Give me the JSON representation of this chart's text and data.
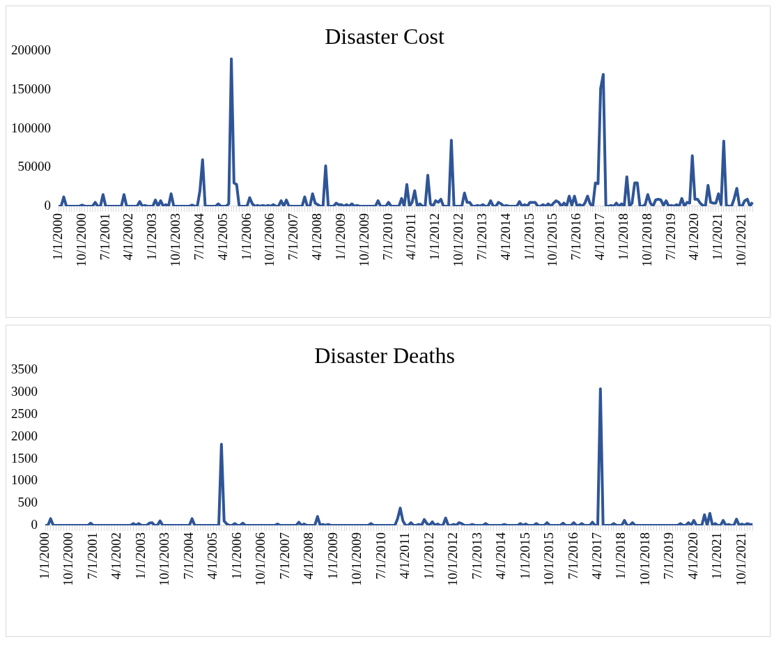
{
  "chart_data": [
    {
      "type": "line",
      "title": "Disaster Cost",
      "color": "#2f5597",
      "ylim": [
        0,
        200000
      ],
      "yticks": [
        0,
        50000,
        100000,
        150000,
        200000
      ],
      "categories": [
        "1/1/2000",
        null,
        null,
        null,
        null,
        null,
        null,
        null,
        null,
        "10/1/2000",
        null,
        null,
        null,
        null,
        null,
        null,
        null,
        null,
        "7/1/2001",
        null,
        null,
        null,
        null,
        null,
        null,
        null,
        null,
        "4/1/2002",
        null,
        null,
        null,
        null,
        null,
        null,
        null,
        null,
        "1/1/2003",
        null,
        null,
        null,
        null,
        null,
        null,
        null,
        null,
        "10/1/2003",
        null,
        null,
        null,
        null,
        null,
        null,
        null,
        null,
        "7/1/2004",
        null,
        null,
        null,
        null,
        null,
        null,
        null,
        null,
        "4/1/2005",
        null,
        null,
        null,
        null,
        null,
        null,
        null,
        null,
        "1/1/2006",
        null,
        null,
        null,
        null,
        null,
        null,
        null,
        null,
        "10/1/2006",
        null,
        null,
        null,
        null,
        null,
        null,
        null,
        null,
        "7/1/2007",
        null,
        null,
        null,
        null,
        null,
        null,
        null,
        null,
        "4/1/2008",
        null,
        null,
        null,
        null,
        null,
        null,
        null,
        null,
        "1/1/2009",
        null,
        null,
        null,
        null,
        null,
        null,
        null,
        null,
        "10/1/2009",
        null,
        null,
        null,
        null,
        null,
        null,
        null,
        null,
        "7/1/2010",
        null,
        null,
        null,
        null,
        null,
        null,
        null,
        null,
        "4/1/2011",
        null,
        null,
        null,
        null,
        null,
        null,
        null,
        null,
        "1/1/2012",
        null,
        null,
        null,
        null,
        null,
        null,
        null,
        null,
        "10/1/2012",
        null,
        null,
        null,
        null,
        null,
        null,
        null,
        null,
        "7/1/2013",
        null,
        null,
        null,
        null,
        null,
        null,
        null,
        null,
        "4/1/2014",
        null,
        null,
        null,
        null,
        null,
        null,
        null,
        null,
        "1/1/2015",
        null,
        null,
        null,
        null,
        null,
        null,
        null,
        null,
        "10/1/2015",
        null,
        null,
        null,
        null,
        null,
        null,
        null,
        null,
        "7/1/2016",
        null,
        null,
        null,
        null,
        null,
        null,
        null,
        null,
        "4/1/2017",
        null,
        null,
        null,
        null,
        null,
        null,
        null,
        null,
        "1/1/2018",
        null,
        null,
        null,
        null,
        null,
        null,
        null,
        null,
        "10/1/2018",
        null,
        null,
        null,
        null,
        null,
        null,
        null,
        null,
        "7/1/2019",
        null,
        null,
        null,
        null,
        null,
        null,
        null,
        null,
        "4/1/2020",
        null,
        null,
        null,
        null,
        null,
        null,
        null,
        null,
        "1/1/2021",
        null,
        null,
        null,
        null,
        null,
        null,
        null,
        null,
        "10/1/2021",
        null,
        null,
        null,
        null
      ],
      "values": [
        0,
        0,
        12000,
        0,
        0,
        0,
        0,
        0,
        0,
        1500,
        0,
        0,
        0,
        0,
        5000,
        0,
        0,
        15000,
        0,
        0,
        0,
        0,
        0,
        0,
        0,
        15000,
        0,
        0,
        0,
        0,
        0,
        6000,
        0,
        1000,
        0,
        0,
        0,
        8000,
        0,
        7000,
        0,
        2000,
        0,
        16000,
        0,
        0,
        0,
        0,
        0,
        0,
        0,
        1500,
        0,
        0,
        20000,
        60000,
        0,
        0,
        0,
        0,
        0,
        3000,
        0,
        0,
        0,
        3000,
        190000,
        30000,
        28000,
        0,
        0,
        0,
        0,
        11000,
        3000,
        0,
        1000,
        0,
        1000,
        0,
        1000,
        0,
        2000,
        0,
        0,
        7000,
        0,
        8000,
        0,
        0,
        0,
        0,
        0,
        0,
        12000,
        0,
        0,
        16000,
        4000,
        2000,
        0,
        0,
        52000,
        0,
        0,
        0,
        4000,
        2000,
        2000,
        0,
        2000,
        0,
        3000,
        0,
        1000,
        0,
        0,
        0,
        0,
        0,
        0,
        0,
        7000,
        0,
        0,
        0,
        5000,
        0,
        0,
        0,
        0,
        10000,
        0,
        28000,
        0,
        5000,
        20000,
        0,
        3000,
        0,
        0,
        40000,
        3000,
        0,
        7000,
        5000,
        9000,
        0,
        0,
        0,
        85000,
        0,
        0,
        0,
        0,
        17000,
        5000,
        5000,
        0,
        0,
        1000,
        0,
        2000,
        0,
        0,
        7000,
        0,
        0,
        5000,
        3000,
        0,
        1000,
        0,
        0,
        0,
        0,
        6000,
        0,
        2000,
        0,
        5000,
        5000,
        5000,
        0,
        0,
        2000,
        0,
        3000,
        0,
        4000,
        7000,
        5000,
        0,
        4000,
        0,
        13000,
        1000,
        13000,
        0,
        2000,
        0,
        4000,
        13000,
        3000,
        0,
        30000,
        29000,
        152000,
        170000,
        0,
        0,
        1000,
        0,
        4000,
        0,
        3000,
        0,
        38000,
        0,
        4000,
        30000,
        30000,
        0,
        0,
        2000,
        15000,
        4000,
        0,
        8000,
        9000,
        8000,
        1000,
        7000,
        0,
        1000,
        0,
        2000,
        0,
        10000,
        0,
        5000,
        4000,
        65000,
        9000,
        9000,
        4000,
        1000,
        0,
        27000,
        5000,
        4000,
        4000,
        16000,
        2000,
        84000,
        1000,
        0,
        0,
        10000,
        23000,
        1000,
        0,
        7000,
        9000,
        0,
        5000
      ]
    },
    {
      "type": "line",
      "title": "Disaster Deaths",
      "color": "#2f5597",
      "ylim": [
        0,
        3500
      ],
      "yticks": [
        0,
        500,
        1000,
        1500,
        2000,
        2500,
        3000,
        3500
      ],
      "categories": [
        "1/1/2000",
        null,
        null,
        null,
        null,
        null,
        null,
        null,
        null,
        "10/1/2000",
        null,
        null,
        null,
        null,
        null,
        null,
        null,
        null,
        "7/1/2001",
        null,
        null,
        null,
        null,
        null,
        null,
        null,
        null,
        "4/1/2002",
        null,
        null,
        null,
        null,
        null,
        null,
        null,
        null,
        "1/1/2003",
        null,
        null,
        null,
        null,
        null,
        null,
        null,
        null,
        "10/1/2003",
        null,
        null,
        null,
        null,
        null,
        null,
        null,
        null,
        "7/1/2004",
        null,
        null,
        null,
        null,
        null,
        null,
        null,
        null,
        "4/1/2005",
        null,
        null,
        null,
        null,
        null,
        null,
        null,
        null,
        "1/1/2006",
        null,
        null,
        null,
        null,
        null,
        null,
        null,
        null,
        "10/1/2006",
        null,
        null,
        null,
        null,
        null,
        null,
        null,
        null,
        "7/1/2007",
        null,
        null,
        null,
        null,
        null,
        null,
        null,
        null,
        "4/1/2008",
        null,
        null,
        null,
        null,
        null,
        null,
        null,
        null,
        "1/1/2009",
        null,
        null,
        null,
        null,
        null,
        null,
        null,
        null,
        "10/1/2009",
        null,
        null,
        null,
        null,
        null,
        null,
        null,
        null,
        "7/1/2010",
        null,
        null,
        null,
        null,
        null,
        null,
        null,
        null,
        "4/1/2011",
        null,
        null,
        null,
        null,
        null,
        null,
        null,
        null,
        "1/1/2012",
        null,
        null,
        null,
        null,
        null,
        null,
        null,
        null,
        "10/1/2012",
        null,
        null,
        null,
        null,
        null,
        null,
        null,
        null,
        "7/1/2013",
        null,
        null,
        null,
        null,
        null,
        null,
        null,
        null,
        "4/1/2014",
        null,
        null,
        null,
        null,
        null,
        null,
        null,
        null,
        "1/1/2015",
        null,
        null,
        null,
        null,
        null,
        null,
        null,
        null,
        "10/1/2015",
        null,
        null,
        null,
        null,
        null,
        null,
        null,
        null,
        "7/1/2016",
        null,
        null,
        null,
        null,
        null,
        null,
        null,
        null,
        "4/1/2017",
        null,
        null,
        null,
        null,
        null,
        null,
        null,
        null,
        "1/1/2018",
        null,
        null,
        null,
        null,
        null,
        null,
        null,
        null,
        "10/1/2018",
        null,
        null,
        null,
        null,
        null,
        null,
        null,
        null,
        "7/1/2019",
        null,
        null,
        null,
        null,
        null,
        null,
        null,
        null,
        "4/1/2020",
        null,
        null,
        null,
        null,
        null,
        null,
        null,
        null,
        "1/1/2021",
        null,
        null,
        null,
        null,
        null,
        null,
        null,
        null,
        "10/1/2021",
        null,
        null,
        null,
        null
      ],
      "values": [
        0,
        0,
        150,
        0,
        0,
        0,
        0,
        0,
        0,
        0,
        0,
        0,
        0,
        0,
        0,
        0,
        0,
        50,
        0,
        0,
        0,
        0,
        0,
        0,
        0,
        0,
        0,
        0,
        0,
        0,
        0,
        0,
        0,
        40,
        0,
        40,
        0,
        0,
        0,
        50,
        60,
        0,
        0,
        100,
        0,
        0,
        0,
        0,
        0,
        0,
        0,
        0,
        0,
        0,
        0,
        150,
        0,
        0,
        0,
        0,
        0,
        0,
        0,
        0,
        0,
        0,
        1830,
        100,
        30,
        0,
        0,
        40,
        0,
        0,
        50,
        0,
        0,
        0,
        0,
        0,
        0,
        0,
        0,
        0,
        0,
        0,
        0,
        30,
        0,
        0,
        0,
        0,
        0,
        0,
        0,
        70,
        0,
        30,
        0,
        0,
        0,
        0,
        200,
        0,
        20,
        0,
        20,
        0,
        0,
        0,
        0,
        0,
        0,
        0,
        0,
        0,
        0,
        0,
        0,
        0,
        0,
        0,
        40,
        0,
        0,
        0,
        0,
        0,
        0,
        0,
        0,
        0,
        150,
        390,
        100,
        0,
        0,
        60,
        0,
        0,
        20,
        0,
        130,
        40,
        0,
        80,
        0,
        30,
        0,
        0,
        165,
        0,
        0,
        20,
        0,
        60,
        40,
        0,
        0,
        0,
        20,
        0,
        0,
        0,
        0,
        40,
        0,
        0,
        0,
        0,
        0,
        0,
        20,
        0,
        0,
        0,
        0,
        0,
        40,
        0,
        30,
        0,
        0,
        0,
        40,
        0,
        0,
        0,
        60,
        0,
        0,
        0,
        0,
        0,
        50,
        0,
        0,
        0,
        60,
        0,
        0,
        40,
        0,
        0,
        0,
        70,
        0,
        0,
        3080,
        0,
        0,
        0,
        0,
        40,
        0,
        0,
        0,
        110,
        0,
        0,
        60,
        0,
        0,
        0,
        0,
        0,
        0,
        0,
        0,
        0,
        0,
        0,
        0,
        0,
        0,
        0,
        0,
        0,
        40,
        0,
        0,
        60,
        0,
        110,
        0,
        0,
        0,
        240,
        0,
        270,
        0,
        40,
        0,
        0,
        110,
        0,
        20,
        0,
        0,
        140,
        0,
        30,
        0,
        40,
        20,
        20
      ]
    }
  ]
}
